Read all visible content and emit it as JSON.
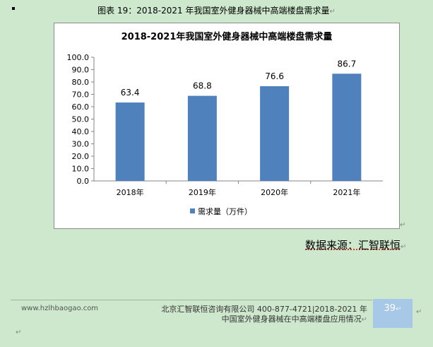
{
  "caption": {
    "text": "图表 19：2018-2021 年我国室外健身器械中高端楼盘需求量",
    "mark": "↵"
  },
  "chart_data": {
    "type": "bar",
    "title": "2018-2021年我国室外健身器械中高端楼盘需求量",
    "categories": [
      "2018年",
      "2019年",
      "2020年",
      "2021年"
    ],
    "series": [
      {
        "name": "需求量（万件）",
        "values": [
          63.4,
          68.8,
          76.6,
          86.7
        ]
      }
    ],
    "ylim": [
      0,
      100
    ],
    "yticks": [
      "0.0",
      "10.0",
      "20.0",
      "30.0",
      "40.0",
      "50.0",
      "60.0",
      "70.0",
      "80.0",
      "90.0",
      "100.0"
    ],
    "data_labels": [
      "63.4",
      "68.8",
      "76.6",
      "86.7"
    ],
    "bar_color": "#4f81bd",
    "legend_position": "bottom",
    "grid": false
  },
  "source": {
    "text": "数据来源：汇智联恒",
    "mark": "↵"
  },
  "footer": {
    "website": "www.hzlhbaogao.com",
    "company_line1": "北京汇智联恒咨询有限公司  400-877-4721|2018-2021 年",
    "company_line2": "中国室外健身器械在中高端楼盘应用情况",
    "page_number": "39",
    "mark": "↵"
  },
  "chart_mark": "↵"
}
